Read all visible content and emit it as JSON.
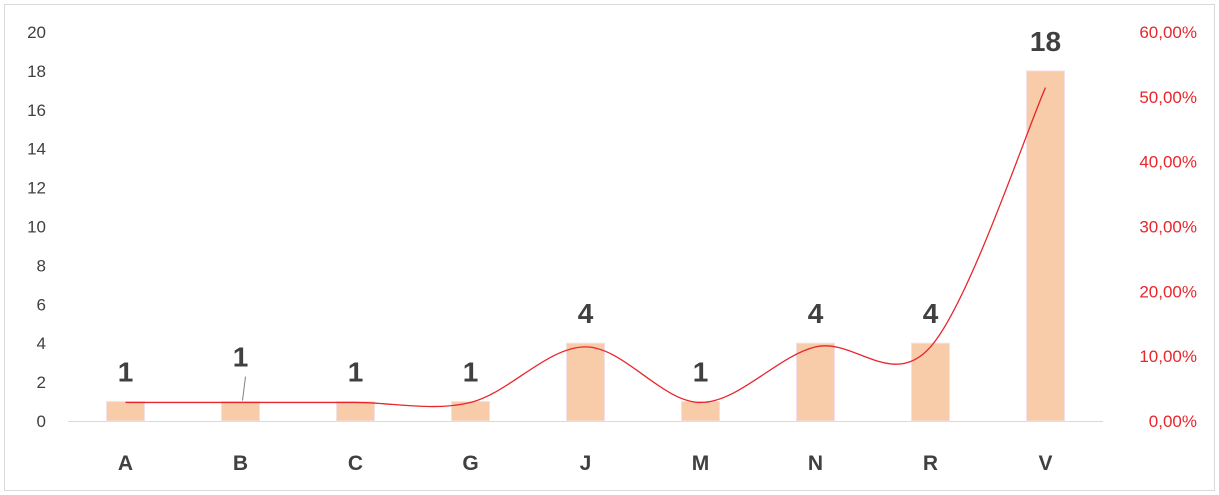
{
  "chart_data": {
    "type": "bar",
    "categories": [
      "A",
      "B",
      "C",
      "G",
      "J",
      "M",
      "N",
      "R",
      "V"
    ],
    "series": [
      {
        "type": "bar",
        "axis": "left",
        "values": [
          1,
          1,
          1,
          1,
          4,
          1,
          4,
          4,
          18
        ],
        "color": "#f8cba9",
        "data_labels": [
          "1",
          "1",
          "1",
          "1",
          "4",
          "1",
          "4",
          "4",
          "18"
        ]
      },
      {
        "type": "line",
        "axis": "right",
        "smooth": true,
        "values": [
          0.0286,
          0.0286,
          0.0286,
          0.0286,
          0.1143,
          0.0286,
          0.1143,
          0.1143,
          0.5143
        ],
        "color": "#e8262b"
      }
    ],
    "y_left": {
      "min": 0,
      "max": 20,
      "step": 2,
      "ticks": [
        "0",
        "2",
        "4",
        "6",
        "8",
        "10",
        "12",
        "14",
        "16",
        "18",
        "20"
      ]
    },
    "y_right": {
      "min": 0,
      "max": 0.6,
      "step": 0.1,
      "ticks": [
        "0,00%",
        "10,00%",
        "20,00%",
        "30,00%",
        "40,00%",
        "50,00%",
        "60,00%"
      ]
    },
    "gridlines": false,
    "legend": "none"
  }
}
